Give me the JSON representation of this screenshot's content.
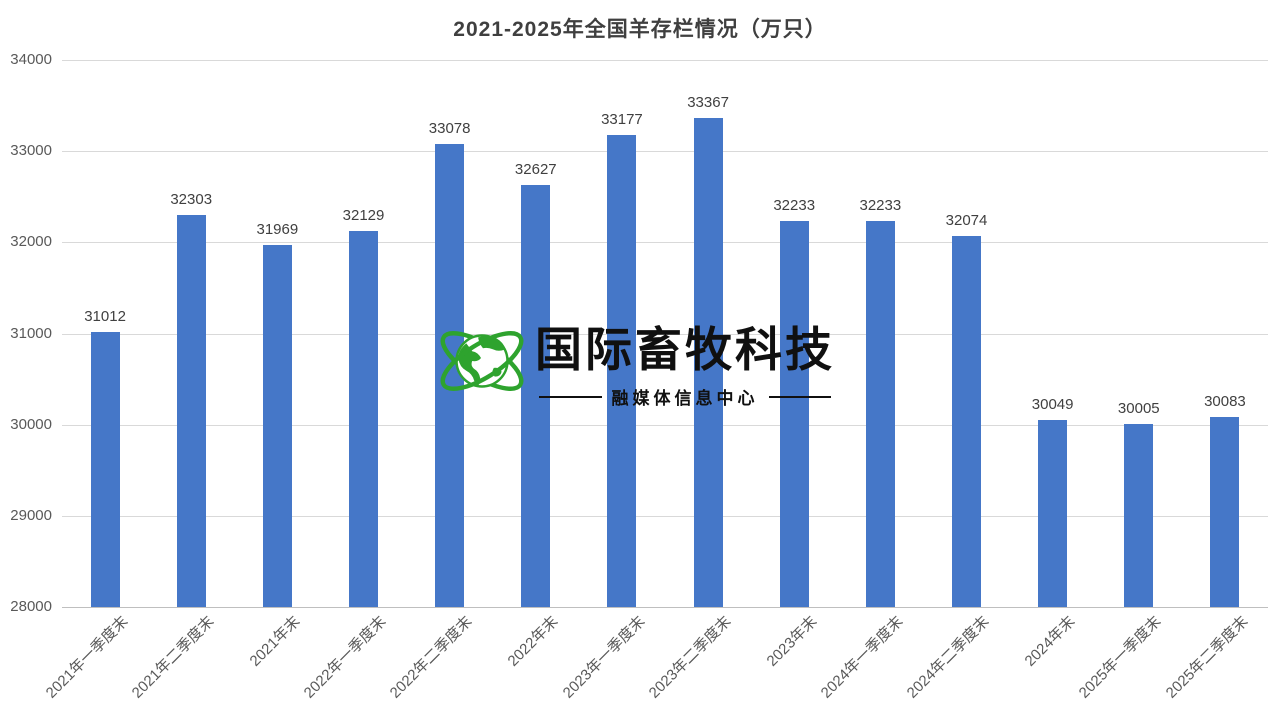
{
  "chart_data": {
    "type": "bar",
    "title": "2021-2025年全国羊存栏情况（万只）",
    "categories": [
      "2021年一季度末",
      "2021年二季度末",
      "2021年末",
      "2022年一季度末",
      "2022年二季度末",
      "2022年末",
      "2023年一季度末",
      "2023年二季度末",
      "2023年末",
      "2024年一季度末",
      "2024年二季度末",
      "2024年末",
      "2025年一季度末",
      "2025年二季度末"
    ],
    "values": [
      31012,
      32303,
      31969,
      32129,
      33078,
      32627,
      33177,
      33367,
      32233,
      32233,
      32074,
      30049,
      30005,
      30083
    ],
    "ylim": [
      28000,
      34000
    ],
    "ytick_interval": 1000,
    "yticks": [
      34000,
      33000,
      32000,
      31000,
      30000,
      29000,
      28000
    ],
    "grid": true,
    "legend": false,
    "xlabel": "",
    "ylabel": "",
    "bar_color": "#4577C8",
    "gridline_color": "#D9D9D9",
    "axisline_color": "#BFBFBF",
    "tick_label_color": "#595959",
    "value_label_color": "#404040",
    "title_color": "#3F3F3F"
  },
  "watermark": {
    "brand": "国际畜牧科技",
    "subtitle": "融媒体信息中心",
    "globe_icon": "globe-with-orbit-rings",
    "globe_color": "#2EA32E",
    "text_color": "#101010"
  }
}
